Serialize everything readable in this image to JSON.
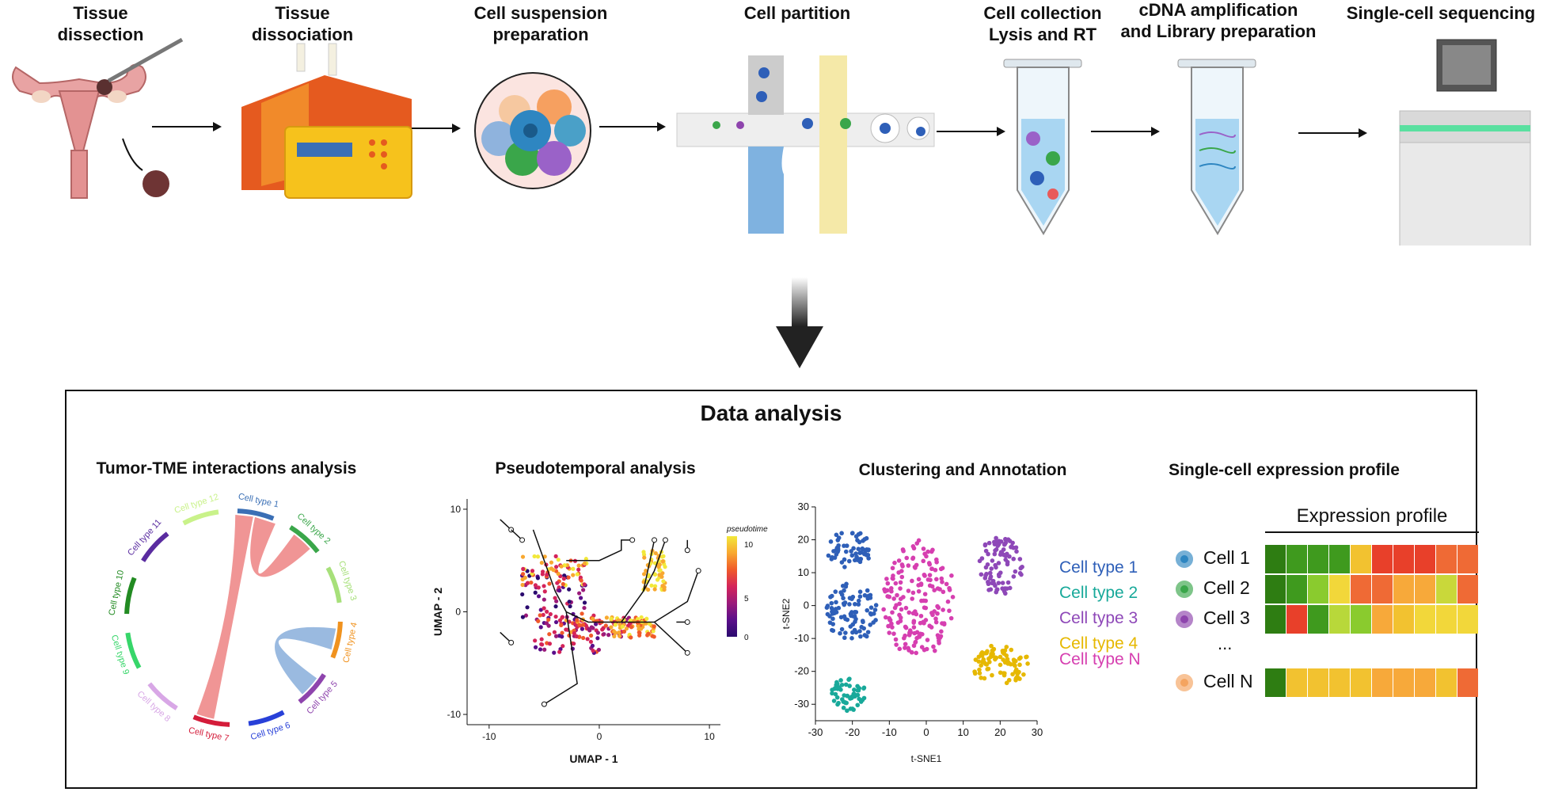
{
  "workflow": {
    "steps": [
      {
        "id": "dissection",
        "label_line1": "Tissue",
        "label_line2": "dissection"
      },
      {
        "id": "dissociation",
        "label_line1": "Tissue",
        "label_line2": "dissociation"
      },
      {
        "id": "suspension",
        "label_line1": "Cell suspension",
        "label_line2": "preparation"
      },
      {
        "id": "partition",
        "label_line1": "Cell partition",
        "label_line2": ""
      },
      {
        "id": "collection",
        "label_line1": "Cell collection",
        "label_line2": "Lysis and RT"
      },
      {
        "id": "amplification",
        "label_line1": "cDNA amplification",
        "label_line2": "and Library preparation"
      },
      {
        "id": "sequencing",
        "label_line1": "Single-cell sequencing",
        "label_line2": ""
      }
    ]
  },
  "analysis": {
    "title": "Data analysis",
    "tme": {
      "title": "Tumor-TME interactions analysis",
      "cell_types": [
        "Cell type 1",
        "Cell type 2",
        "Cell type 3",
        "Cell type 4",
        "Cell type 5",
        "Cell type 6",
        "Cell type 7",
        "Cell type 8",
        "Cell type 9",
        "Cell type 10",
        "Cell type 11",
        "Cell type 12"
      ],
      "colors": [
        "#3a6fb5",
        "#3aa64a",
        "#a7e07a",
        "#f0921e",
        "#8e44ad",
        "#2840d8",
        "#d41c3a",
        "#d8a7e6",
        "#37d66a",
        "#228b22",
        "#5a2ca0",
        "#c9f28a"
      ],
      "ribbon_color": "#ee8a8a",
      "ribbon_color2": "#8fb3dd"
    },
    "pseudotime": {
      "title": "Pseudotemporal analysis",
      "xlabel": "UMAP - 1",
      "ylabel": "UMAP - 2",
      "x_ticks": [
        "-10",
        "0",
        "10"
      ],
      "y_ticks": [
        "10",
        "0",
        "-10"
      ],
      "colorbar_title": "pseudotime",
      "colorbar_ticks": [
        "10",
        "5",
        "0"
      ]
    },
    "clustering": {
      "title": "Clustering and Annotation",
      "xlabel": "t-SNE1",
      "ylabel": "t-SNE2",
      "x_ticks": [
        "-30",
        "-20",
        "-10",
        "0",
        "10",
        "20",
        "30"
      ],
      "y_ticks": [
        "30",
        "20",
        "10",
        "0",
        "-10",
        "-20",
        "-30"
      ],
      "legend": [
        {
          "label": "Cell type 1",
          "color": "#2e5fb8"
        },
        {
          "label": "Cell type 2",
          "color": "#18a99a"
        },
        {
          "label": "Cell type 3",
          "color": "#8e48b8"
        },
        {
          "label": "Cell type 4",
          "color": "#e6b800"
        },
        {
          "label": "Cell type N",
          "color": "#d63fb0"
        }
      ]
    },
    "expression": {
      "title": "Single-cell expression profile",
      "header": "Expression profile",
      "ellipsis": "...",
      "cells": [
        {
          "label": "Cell 1",
          "dot": "#2e86c1",
          "colors": [
            "#2e7d12",
            "#3f9a1e",
            "#3f9a1e",
            "#3f9a1e",
            "#f2c230",
            "#e8402a",
            "#e8402a",
            "#e8402a",
            "#ef6a35",
            "#ef6a35"
          ]
        },
        {
          "label": "Cell 2",
          "dot": "#3aa64a",
          "colors": [
            "#2e7d12",
            "#3f9a1e",
            "#8acb2e",
            "#f2d73a",
            "#ef6a35",
            "#ef6a35",
            "#f7a93a",
            "#f7a93a",
            "#c9d83a",
            "#ef6a35"
          ]
        },
        {
          "label": "Cell 3",
          "dot": "#8e44ad",
          "colors": [
            "#2e7d12",
            "#e8402a",
            "#3f9a1e",
            "#b8d83a",
            "#8acb2e",
            "#f7a93a",
            "#f2c230",
            "#f2d73a",
            "#f2d73a",
            "#f2d73a"
          ]
        },
        {
          "label": "Cell N",
          "dot": "#f4a460",
          "colors": [
            "#2e7d12",
            "#f2c230",
            "#f2c230",
            "#f2c230",
            "#f2c230",
            "#f7a93a",
            "#f7a93a",
            "#f7a93a",
            "#f2c230",
            "#ef6a35"
          ]
        }
      ]
    }
  }
}
